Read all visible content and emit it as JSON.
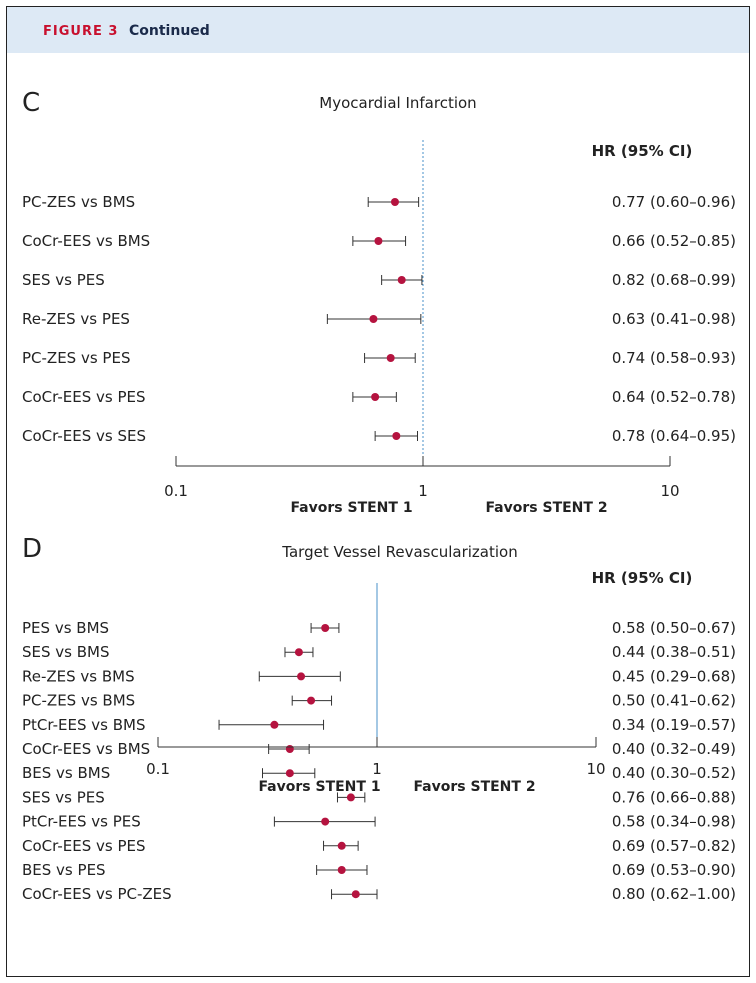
{
  "header": {
    "figure_label": "FIGURE 3",
    "continued": "Continued"
  },
  "colors": {
    "marker": "#b5133f",
    "ref_line": "#4a90c8",
    "header_bg": "#dde9f5",
    "figure_label": "#c8102e"
  },
  "chart_data": [
    {
      "type": "forest",
      "panel": "C",
      "title": "Myocardial Infarction",
      "column_header": "HR (95% CI)",
      "scale": "log",
      "xlim": [
        0.1,
        10
      ],
      "ticks": [
        "0.1",
        "1",
        "10"
      ],
      "tick_values": [
        0.1,
        1,
        10
      ],
      "reference_line": 1,
      "reference_style": "dotted",
      "left_label": "Favors STENT 1",
      "right_label": "Favors STENT 2",
      "rows": [
        {
          "label": "PC-ZES vs BMS",
          "hr": 0.77,
          "lo": 0.6,
          "hi": 0.96,
          "text": "0.77 (0.60–0.96)"
        },
        {
          "label": "CoCr-EES vs BMS",
          "hr": 0.66,
          "lo": 0.52,
          "hi": 0.85,
          "text": "0.66 (0.52–0.85)"
        },
        {
          "label": "SES vs PES",
          "hr": 0.82,
          "lo": 0.68,
          "hi": 0.99,
          "text": "0.82 (0.68–0.99)"
        },
        {
          "label": "Re-ZES vs PES",
          "hr": 0.63,
          "lo": 0.41,
          "hi": 0.98,
          "text": "0.63 (0.41–0.98)"
        },
        {
          "label": "PC-ZES vs PES",
          "hr": 0.74,
          "lo": 0.58,
          "hi": 0.93,
          "text": "0.74 (0.58–0.93)"
        },
        {
          "label": "CoCr-EES vs PES",
          "hr": 0.64,
          "lo": 0.52,
          "hi": 0.78,
          "text": "0.64 (0.52–0.78)"
        },
        {
          "label": "CoCr-EES vs SES",
          "hr": 0.78,
          "lo": 0.64,
          "hi": 0.95,
          "text": "0.78 (0.64–0.95)"
        }
      ]
    },
    {
      "type": "forest",
      "panel": "D",
      "title": "Target Vessel Revascularization",
      "column_header": "HR (95% CI)",
      "scale": "log",
      "xlim": [
        0.1,
        10
      ],
      "ticks": [
        "0.1",
        "1",
        "10"
      ],
      "tick_values": [
        0.1,
        1,
        10
      ],
      "reference_line": 1,
      "reference_style": "solid",
      "left_label": "Favors STENT 1",
      "right_label": "Favors STENT 2",
      "rows": [
        {
          "label": "PES vs BMS",
          "hr": 0.58,
          "lo": 0.5,
          "hi": 0.67,
          "text": "0.58 (0.50–0.67)"
        },
        {
          "label": "SES vs BMS",
          "hr": 0.44,
          "lo": 0.38,
          "hi": 0.51,
          "text": "0.44 (0.38–0.51)"
        },
        {
          "label": "Re-ZES vs BMS",
          "hr": 0.45,
          "lo": 0.29,
          "hi": 0.68,
          "text": "0.45 (0.29–0.68)"
        },
        {
          "label": "PC-ZES vs BMS",
          "hr": 0.5,
          "lo": 0.41,
          "hi": 0.62,
          "text": "0.50 (0.41–0.62)"
        },
        {
          "label": "PtCr-EES vs BMS",
          "hr": 0.34,
          "lo": 0.19,
          "hi": 0.57,
          "text": "0.34 (0.19–0.57)"
        },
        {
          "label": "CoCr-EES vs BMS",
          "hr": 0.4,
          "lo": 0.32,
          "hi": 0.49,
          "text": "0.40 (0.32–0.49)"
        },
        {
          "label": "BES vs BMS",
          "hr": 0.4,
          "lo": 0.3,
          "hi": 0.52,
          "text": "0.40 (0.30–0.52)"
        },
        {
          "label": "SES vs PES",
          "hr": 0.76,
          "lo": 0.66,
          "hi": 0.88,
          "text": "0.76 (0.66–0.88)"
        },
        {
          "label": "PtCr-EES vs PES",
          "hr": 0.58,
          "lo": 0.34,
          "hi": 0.98,
          "text": "0.58 (0.34–0.98)"
        },
        {
          "label": "CoCr-EES vs PES",
          "hr": 0.69,
          "lo": 0.57,
          "hi": 0.82,
          "text": "0.69 (0.57–0.82)"
        },
        {
          "label": "BES vs PES",
          "hr": 0.69,
          "lo": 0.53,
          "hi": 0.9,
          "text": "0.69 (0.53–0.90)"
        },
        {
          "label": "CoCr-EES vs PC-ZES",
          "hr": 0.8,
          "lo": 0.62,
          "hi": 1.0,
          "text": "0.80 (0.62–1.00)"
        }
      ]
    }
  ]
}
